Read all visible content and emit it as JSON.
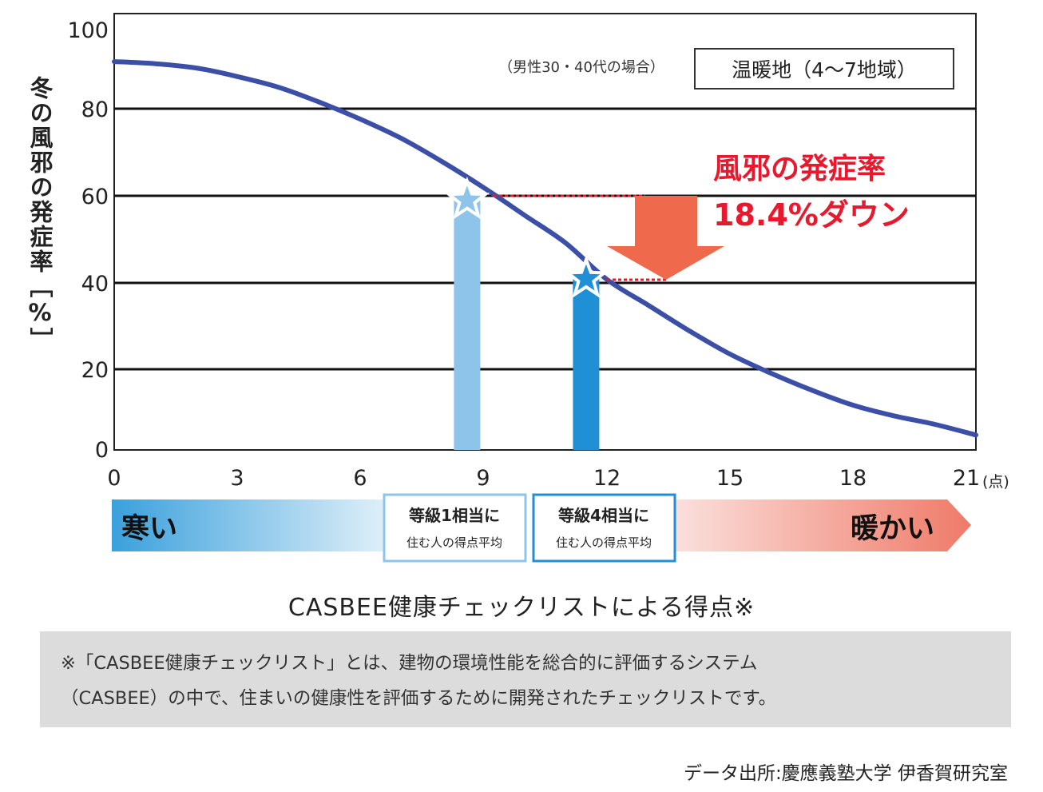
{
  "chart_data": {
    "type": "line",
    "ylabel": "冬の風邪の発症率［%］",
    "xunit": "(点)",
    "xlim": [
      0,
      21
    ],
    "ylim": [
      0,
      100
    ],
    "xticks": [
      0,
      3,
      6,
      9,
      12,
      15,
      18,
      21
    ],
    "yticks": [
      0,
      20,
      40,
      60,
      80,
      100
    ],
    "grid": "horizontal",
    "series": [
      {
        "color": "#3b4fa6",
        "x": [
          0,
          1,
          2,
          3,
          4,
          5,
          6,
          7,
          8,
          9,
          10,
          11,
          12,
          13,
          14,
          15,
          16,
          17,
          18,
          19,
          20,
          21
        ],
        "y": [
          91,
          90.5,
          89.5,
          87.5,
          85,
          81.5,
          77.5,
          73,
          67.5,
          61.5,
          55,
          48.5,
          40,
          34,
          28,
          22.5,
          18,
          14,
          10.5,
          8,
          6,
          3.5
        ]
      }
    ],
    "bars": [
      {
        "x": 8.6,
        "value": 58.5,
        "color": "#8ec4ea"
      },
      {
        "x": 11.5,
        "value": 40.1,
        "color": "#1f8fd6"
      }
    ],
    "annotations": {
      "condition": "（男性30・40代の場合）",
      "region": "温暖地（4～7地域）",
      "drop_title": "風邪の発症率",
      "drop_value": "18.4%ダウン"
    },
    "scale_bar": {
      "left": "寒い",
      "right": "暖かい",
      "box1": [
        "等級1相当に",
        "住む人の得点平均"
      ],
      "box2": [
        "等級4相当に",
        "住む人の得点平均"
      ]
    }
  },
  "caption": "CASBEE健康チェックリストによる得点※",
  "note": {
    "line1": "※「CASBEE健康チェックリスト」とは、建物の環境性能を総合的に評価するシステム",
    "line2": "（CASBEE）の中で、住まいの健康性を評価するために開発されたチェックリストです。"
  },
  "source": "データ出所:慶應義塾大学 伊香賀研究室",
  "colors": {
    "curve": "#3b4fa6",
    "bar1": "#8ec4ea",
    "bar2": "#1f8fd6",
    "arrow": "#ef6a4c",
    "highlight": "#e8192c",
    "cold": "#3aa0dc",
    "warm": "#ef7a68"
  }
}
